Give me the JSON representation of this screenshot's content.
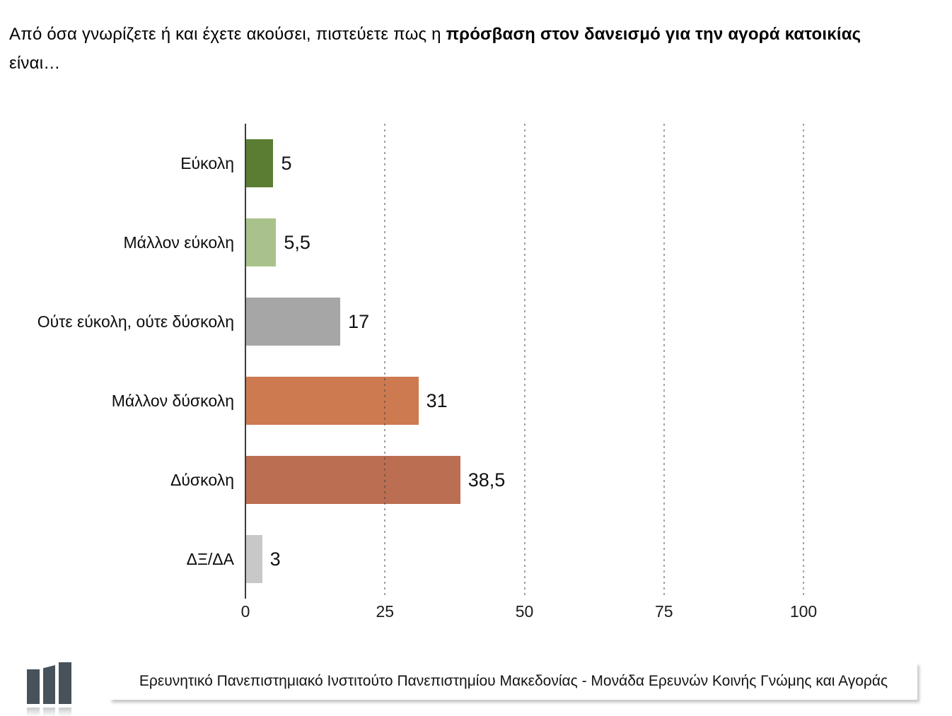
{
  "title": {
    "line1_regular": "Από όσα γνωρίζετε ή και έχετε ακούσει, πιστεύετε πως η ",
    "line1_bold": "πρόσβαση στον δανεισμό για την αγορά κατοικίας",
    "line2": "είναι…"
  },
  "chart_data": {
    "type": "bar",
    "orientation": "horizontal",
    "categories": [
      "Εύκολη",
      "Μάλλον εύκολη",
      "Ούτε εύκολη, ούτε δύσκολη",
      "Μάλλον δύσκολη",
      "Δύσκολη",
      "ΔΞ/ΔΑ"
    ],
    "values": [
      5,
      5.5,
      17,
      31,
      38.5,
      3
    ],
    "value_labels": [
      "5",
      "5,5",
      "17",
      "31",
      "38,5",
      "3"
    ],
    "bar_colors": [
      "#5A7D32",
      "#A9C28B",
      "#A6A6A6",
      "#CD7A51",
      "#BB6E51",
      "#C8C8C8"
    ],
    "x_ticks": [
      0,
      25,
      50,
      75,
      100
    ],
    "x_tick_labels": [
      "0",
      "25",
      "50",
      "75",
      "100"
    ],
    "xlim": [
      0,
      100
    ],
    "grid": "dashed-vertical",
    "gridline_color": "#9a9a9a",
    "axis_color": "#3d3d3d",
    "legend": "none",
    "title": "",
    "xlabel": "",
    "ylabel": ""
  },
  "footer": {
    "text": "Ερευνητικό Πανεπιστημιακό Ινστιτούτο Πανεπιστημίου Μακεδονίας - Μονάδα Ερευνών Κοινής Γνώμης και Αγοράς",
    "logo_color": "#47525A"
  }
}
